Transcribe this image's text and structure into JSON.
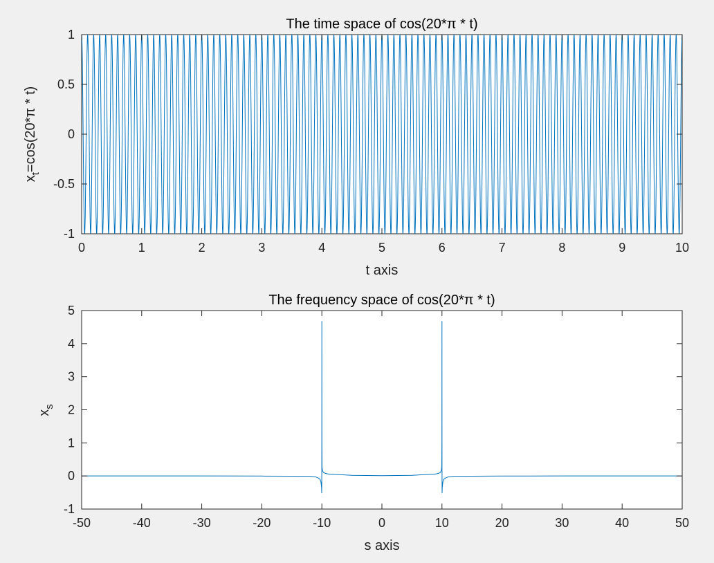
{
  "chart_data": [
    {
      "type": "line",
      "title": "The time space of cos(20*π * t)",
      "xlabel": "t axis",
      "ylabel_base": "x",
      "ylabel_sub": "t",
      "ylabel_rest": "=cos(20*π * t)",
      "xlim": [
        0,
        10
      ],
      "ylim": [
        -1,
        1
      ],
      "xticks": [
        0,
        1,
        2,
        3,
        4,
        5,
        6,
        7,
        8,
        9,
        10
      ],
      "yticks": [
        -1,
        -0.5,
        0,
        0.5,
        1
      ],
      "xtick_labels": [
        "0",
        "1",
        "2",
        "3",
        "4",
        "5",
        "6",
        "7",
        "8",
        "9",
        "10"
      ],
      "ytick_labels": [
        "-1",
        "-0.5",
        "0",
        "0.5",
        "1"
      ],
      "grid": false,
      "series": [
        {
          "function": "cos(20*pi*t)",
          "frequency_hz": 10,
          "x_range": [
            0,
            10
          ],
          "color": "#0072bd"
        }
      ]
    },
    {
      "type": "line",
      "title": "The frequency space of cos(20*π * t)",
      "xlabel": "s axis",
      "ylabel_base": "x",
      "ylabel_sub": "s",
      "ylabel_rest": "",
      "xlim": [
        -50,
        50
      ],
      "ylim": [
        -1,
        5
      ],
      "xticks": [
        -50,
        -40,
        -30,
        -20,
        -10,
        0,
        10,
        20,
        30,
        40,
        50
      ],
      "yticks": [
        -1,
        0,
        1,
        2,
        3,
        4,
        5
      ],
      "xtick_labels": [
        "-50",
        "-40",
        "-30",
        "-20",
        "-10",
        "0",
        "10",
        "20",
        "30",
        "40",
        "50"
      ],
      "ytick_labels": [
        "-1",
        "0",
        "1",
        "2",
        "3",
        "4",
        "5"
      ],
      "grid": false,
      "series": [
        {
          "color": "#0072bd",
          "x": [
            -50,
            -30,
            -20,
            -15,
            -12,
            -11,
            -10.6,
            -10.3,
            -10.15,
            -10.05,
            -10.02,
            -10.01,
            -10.0,
            -9.99,
            -9.97,
            -9.9,
            -9.7,
            -9.4,
            -9,
            -5,
            0,
            5,
            9,
            9.4,
            9.7,
            9.9,
            9.97,
            9.99,
            10.0,
            10.01,
            10.02,
            10.05,
            10.15,
            10.3,
            10.6,
            11,
            12,
            15,
            20,
            30,
            50
          ],
          "y": [
            0,
            0,
            -0.003,
            -0.006,
            -0.01,
            -0.03,
            -0.06,
            -0.1,
            -0.18,
            -0.35,
            -0.52,
            0.3,
            4.68,
            1.0,
            0.28,
            0.16,
            0.1,
            0.08,
            0.06,
            0.02,
            0.01,
            0.02,
            0.06,
            0.08,
            0.1,
            0.16,
            0.28,
            1.0,
            4.68,
            0.3,
            -0.52,
            -0.35,
            -0.18,
            -0.1,
            -0.06,
            -0.03,
            -0.01,
            -0.006,
            -0.003,
            0,
            0
          ]
        }
      ]
    }
  ]
}
